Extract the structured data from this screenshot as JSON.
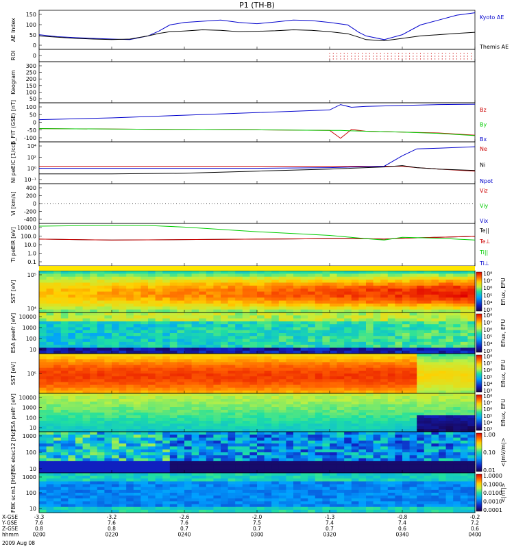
{
  "title": "P1 (TH-B)",
  "footer": {
    "rows": [
      {
        "label": "X-GSE",
        "ticks": [
          "-3.3",
          "-3.2",
          "-2.6",
          "-2.0",
          "-1.3",
          "-0.8",
          "-0.2"
        ]
      },
      {
        "label": "Y-GSE",
        "ticks": [
          "7.6",
          "7.6",
          "7.6",
          "7.5",
          "7.4",
          "7.4",
          "7.2"
        ]
      },
      {
        "label": "Z-GSE",
        "ticks": [
          "0.8",
          "0.8",
          "0.7",
          "0.7",
          "0.7",
          "0.6",
          "0.6"
        ]
      },
      {
        "label": "hhmm",
        "ticks": [
          "0200",
          "0220",
          "0240",
          "0300",
          "0320",
          "0340",
          "0400"
        ]
      }
    ],
    "date": "2009 Aug 08"
  },
  "chart_data": [
    {
      "type": "line",
      "ylabel": "AE Index",
      "yticks": [
        "0",
        "50",
        "100",
        "150"
      ],
      "ylim": [
        0,
        160
      ],
      "x": [
        0,
        5,
        10,
        15,
        20,
        25,
        30,
        33,
        36,
        40,
        45,
        50,
        55,
        60,
        65,
        70,
        75,
        80,
        85,
        88,
        90,
        95,
        100,
        105,
        110,
        115,
        120
      ],
      "series": [
        {
          "name": "Kyoto AE",
          "color": "#0000cc",
          "values": [
            60,
            52,
            48,
            45,
            42,
            40,
            55,
            75,
            100,
            110,
            115,
            120,
            110,
            105,
            112,
            120,
            118,
            110,
            100,
            70,
            55,
            40,
            60,
            100,
            120,
            140,
            150
          ]
        },
        {
          "name": "Themis AE",
          "color": "#000000",
          "values": [
            55,
            50,
            45,
            42,
            40,
            42,
            55,
            65,
            72,
            75,
            80,
            78,
            72,
            74,
            76,
            80,
            78,
            72,
            64,
            50,
            40,
            35,
            45,
            55,
            60,
            65,
            70
          ]
        }
      ]
    },
    {
      "type": "scatter",
      "ylabel": "ROI",
      "yticks": [
        "0"
      ],
      "series": [
        {
          "name": "",
          "color": "#cc0000",
          "x_start": 80,
          "x_end": 120
        }
      ]
    },
    {
      "type": "heatmap",
      "ylabel": "Keogram",
      "yticks": [
        "50",
        "100",
        "150",
        "200",
        "250",
        "300"
      ],
      "ylim": [
        0,
        300
      ]
    },
    {
      "type": "line",
      "ylabel": "B_FIT (GSE) [nT]",
      "yticks": [
        "-100",
        "-50",
        "0",
        "50",
        "100"
      ],
      "ylim": [
        -110,
        110
      ],
      "x": [
        0,
        20,
        40,
        60,
        80,
        83,
        86,
        90,
        100,
        110,
        120
      ],
      "series": [
        {
          "name": "Bz",
          "color": "#cc0000",
          "values": [
            -35,
            -38,
            -40,
            -42,
            -45,
            -90,
            -40,
            -50,
            -55,
            -60,
            -72
          ]
        },
        {
          "name": "By",
          "color": "#00cc00",
          "values": [
            -35,
            -38,
            -40,
            -42,
            -45,
            -45,
            -48,
            -50,
            -55,
            -62,
            -75
          ]
        },
        {
          "name": "Bx",
          "color": "#0000cc",
          "values": [
            15,
            25,
            40,
            55,
            70,
            100,
            85,
            90,
            95,
            100,
            102
          ]
        }
      ]
    },
    {
      "type": "line",
      "ylabel": "Ni peEIC [1/cc]",
      "yticks": [
        "10⁻¹",
        "10⁰",
        "10²",
        "10⁴"
      ],
      "log": true,
      "ylim": [
        -1.5,
        4.5
      ],
      "x": [
        0,
        20,
        40,
        60,
        80,
        95,
        100,
        104,
        110,
        120
      ],
      "series": [
        {
          "name": "Ne",
          "color": "#cc0000",
          "values": [
            1.0,
            1.0,
            1.0,
            1.0,
            1.0,
            1.0,
            1.0,
            0.8,
            0.6,
            0.3
          ]
        },
        {
          "name": "Ni",
          "color": "#000000",
          "values": [
            -0.1,
            -0.1,
            0.0,
            0.3,
            0.6,
            0.9,
            1.1,
            0.8,
            0.6,
            0.4
          ]
        },
        {
          "name": "Npot",
          "color": "#0000cc",
          "values": [
            0.7,
            0.7,
            0.7,
            0.7,
            0.8,
            1.0,
            2.5,
            3.5,
            3.6,
            3.8
          ]
        }
      ]
    },
    {
      "type": "line",
      "ylabel": "Vi [km/s]",
      "yticks": [
        "-400",
        "-200",
        "0",
        "200",
        "400"
      ],
      "ylim": [
        -500,
        500
      ],
      "series": [
        {
          "name": "Viz",
          "color": "#cc0000"
        },
        {
          "name": "Viy",
          "color": "#00cc00"
        },
        {
          "name": "Vix",
          "color": "#0000cc"
        }
      ]
    },
    {
      "type": "line",
      "ylabel": "Ti peEIR [eV]",
      "yticks": [
        "0.1",
        "1.0",
        "10.0",
        "100.0",
        "1000.0"
      ],
      "log": true,
      "ylim": [
        -1.1,
        3.5
      ],
      "x": [
        0,
        10,
        20,
        30,
        40,
        50,
        60,
        70,
        80,
        90,
        95,
        100,
        110,
        120
      ],
      "series": [
        {
          "name": "Te||",
          "color": "#000000",
          "values": [
            1.8,
            1.75,
            1.7,
            1.72,
            1.75,
            1.78,
            1.8,
            1.82,
            1.85,
            1.85,
            1.8,
            1.9,
            2.0,
            2.1
          ]
        },
        {
          "name": "Te⊥",
          "color": "#cc0000",
          "values": [
            1.8,
            1.75,
            1.7,
            1.72,
            1.75,
            1.78,
            1.8,
            1.82,
            1.85,
            1.85,
            1.8,
            1.9,
            2.0,
            2.1
          ]
        },
        {
          "name": "Ti||",
          "color": "#00cc00",
          "values": [
            3.2,
            3.25,
            3.3,
            3.28,
            3.1,
            2.85,
            2.6,
            2.4,
            2.2,
            1.85,
            1.7,
            2.0,
            1.9,
            1.7
          ]
        },
        {
          "name": "Ti⊥",
          "color": "#0000cc"
        }
      ]
    },
    {
      "type": "heatmap",
      "ylabel": "SST [eV]",
      "yticks": [
        "10⁴",
        "10⁵"
      ],
      "colorbar": {
        "label": "Eflux, EFU",
        "ticks": [
          "10³",
          "10⁴",
          "10⁵",
          "10⁶",
          "10⁷",
          "10⁸"
        ]
      }
    },
    {
      "type": "heatmap",
      "ylabel": "ESA peefr [eV]",
      "yticks": [
        "10",
        "100",
        "1000",
        "10000"
      ],
      "colorbar": {
        "label": "Eflux, EFU",
        "ticks": [
          "10³",
          "10⁴",
          "10⁵",
          "10⁶",
          "10⁷",
          "10⁸"
        ]
      }
    },
    {
      "type": "heatmap",
      "ylabel": "SST [eV]",
      "yticks": [
        "10⁵"
      ],
      "colorbar": {
        "label": "Eflux, EFU",
        "ticks": [
          "10³",
          "10⁴",
          "10⁵",
          "10⁶",
          "10⁷",
          "10⁸"
        ]
      }
    },
    {
      "type": "heatmap",
      "ylabel": "ESA peifr [eV]",
      "yticks": [
        "10",
        "100",
        "1000",
        "10000"
      ],
      "colorbar": {
        "label": "Eflux, EFU",
        "ticks": [
          "10³",
          "10⁴",
          "10⁵",
          "10⁶",
          "10⁷",
          "10⁸"
        ]
      }
    },
    {
      "type": "heatmap",
      "ylabel": "FBK ebsc12 [Hz]",
      "yticks": [
        "10",
        "100",
        "1000"
      ],
      "colorbar": {
        "label": "<|mV/m|>",
        "ticks": [
          "0.01",
          "0.10",
          "1.00"
        ]
      }
    },
    {
      "type": "heatmap",
      "ylabel": "FBK scm1 [Hz]",
      "yticks": [
        "10",
        "100",
        "1000"
      ],
      "colorbar": {
        "label": "<|nT|>",
        "ticks": [
          "0.0001",
          "0.0010",
          "0.0100",
          "0.1000",
          "1.0000"
        ]
      }
    }
  ]
}
